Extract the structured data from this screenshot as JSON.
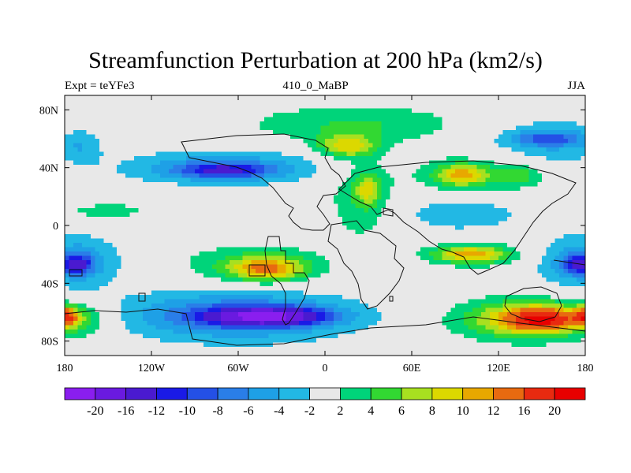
{
  "title": "Streamfunction Perturbation at 200 hPa (km2/s)",
  "subtitle_left": "Expt = teYFe3",
  "subtitle_center": "410_0_MaBP",
  "subtitle_right": "JJA",
  "axes": {
    "x_ticks": [
      "180",
      "120W",
      "60W",
      "0",
      "60E",
      "120E",
      "180"
    ],
    "y_ticks": [
      "80N",
      "40N",
      "0",
      "40S",
      "80S"
    ],
    "x_range": [
      -180,
      180
    ],
    "y_range": [
      -90,
      90
    ]
  },
  "colorbar": {
    "labels": [
      "-20",
      "-16",
      "-12",
      "-10",
      "-8",
      "-6",
      "-4",
      "-2",
      "2",
      "4",
      "6",
      "8",
      "10",
      "12",
      "16",
      "20"
    ],
    "colors": [
      "#8a1eef",
      "#6a1ae0",
      "#4a1ad0",
      "#1a1ae6",
      "#2450e6",
      "#2a7ee8",
      "#1ea0e6",
      "#22b8e4",
      "#e8e8e8",
      "#00d47a",
      "#32d832",
      "#a8e020",
      "#dcd800",
      "#e8a800",
      "#e86a10",
      "#e82a10",
      "#e80000"
    ]
  },
  "field": {
    "blobs": [
      {
        "lon": 20,
        "lat": 70,
        "w": 80,
        "h": 14,
        "v": 4
      },
      {
        "lon": 15,
        "lat": 55,
        "w": 20,
        "h": 8,
        "v": 8
      },
      {
        "lon": -170,
        "lat": 55,
        "w": 16,
        "h": 12,
        "v": -4
      },
      {
        "lon": -70,
        "lat": 40,
        "w": 70,
        "h": 12,
        "v": -6
      },
      {
        "lon": -70,
        "lat": 38,
        "w": 30,
        "h": 5,
        "v": -8
      },
      {
        "lon": 25,
        "lat": 20,
        "w": 22,
        "h": 30,
        "v": 4
      },
      {
        "lon": 30,
        "lat": 25,
        "w": 8,
        "h": 10,
        "v": 6
      },
      {
        "lon": -150,
        "lat": 10,
        "w": 25,
        "h": 5,
        "v": 4
      },
      {
        "lon": 100,
        "lat": 35,
        "w": 45,
        "h": 14,
        "v": 4
      },
      {
        "lon": 95,
        "lat": 35,
        "w": 16,
        "h": 7,
        "v": 8
      },
      {
        "lon": 135,
        "lat": 35,
        "w": 14,
        "h": 8,
        "v": 4
      },
      {
        "lon": 95,
        "lat": 8,
        "w": 40,
        "h": 12,
        "v": -4
      },
      {
        "lon": 155,
        "lat": 58,
        "w": 45,
        "h": 18,
        "v": -4
      },
      {
        "lon": 155,
        "lat": 60,
        "w": 25,
        "h": 5,
        "v": -6
      },
      {
        "lon": -172,
        "lat": -25,
        "w": 30,
        "h": 18,
        "v": -6
      },
      {
        "lon": -172,
        "lat": -27,
        "w": 10,
        "h": 6,
        "v": -10
      },
      {
        "lon": 175,
        "lat": -25,
        "w": 30,
        "h": 18,
        "v": -6
      },
      {
        "lon": 178,
        "lat": -27,
        "w": 12,
        "h": 6,
        "v": -10
      },
      {
        "lon": -50,
        "lat": -28,
        "w": 55,
        "h": 16,
        "v": 4
      },
      {
        "lon": -40,
        "lat": -30,
        "w": 25,
        "h": 8,
        "v": 10
      },
      {
        "lon": 105,
        "lat": -20,
        "w": 40,
        "h": 10,
        "v": 4
      },
      {
        "lon": 100,
        "lat": -20,
        "w": 22,
        "h": 5,
        "v": 8
      },
      {
        "lon": -60,
        "lat": -62,
        "w": 80,
        "h": 18,
        "v": -8
      },
      {
        "lon": -40,
        "lat": -63,
        "w": 40,
        "h": 6,
        "v": -16
      },
      {
        "lon": 140,
        "lat": -65,
        "w": 48,
        "h": 14,
        "v": 10
      },
      {
        "lon": 150,
        "lat": -65,
        "w": 22,
        "h": 7,
        "v": 14
      },
      {
        "lon": -175,
        "lat": -65,
        "w": 24,
        "h": 12,
        "v": 8
      },
      {
        "lon": -180,
        "lat": -63,
        "w": 8,
        "h": 6,
        "v": 14
      },
      {
        "lon": 180,
        "lat": -63,
        "w": 8,
        "h": 6,
        "v": 14
      }
    ]
  }
}
